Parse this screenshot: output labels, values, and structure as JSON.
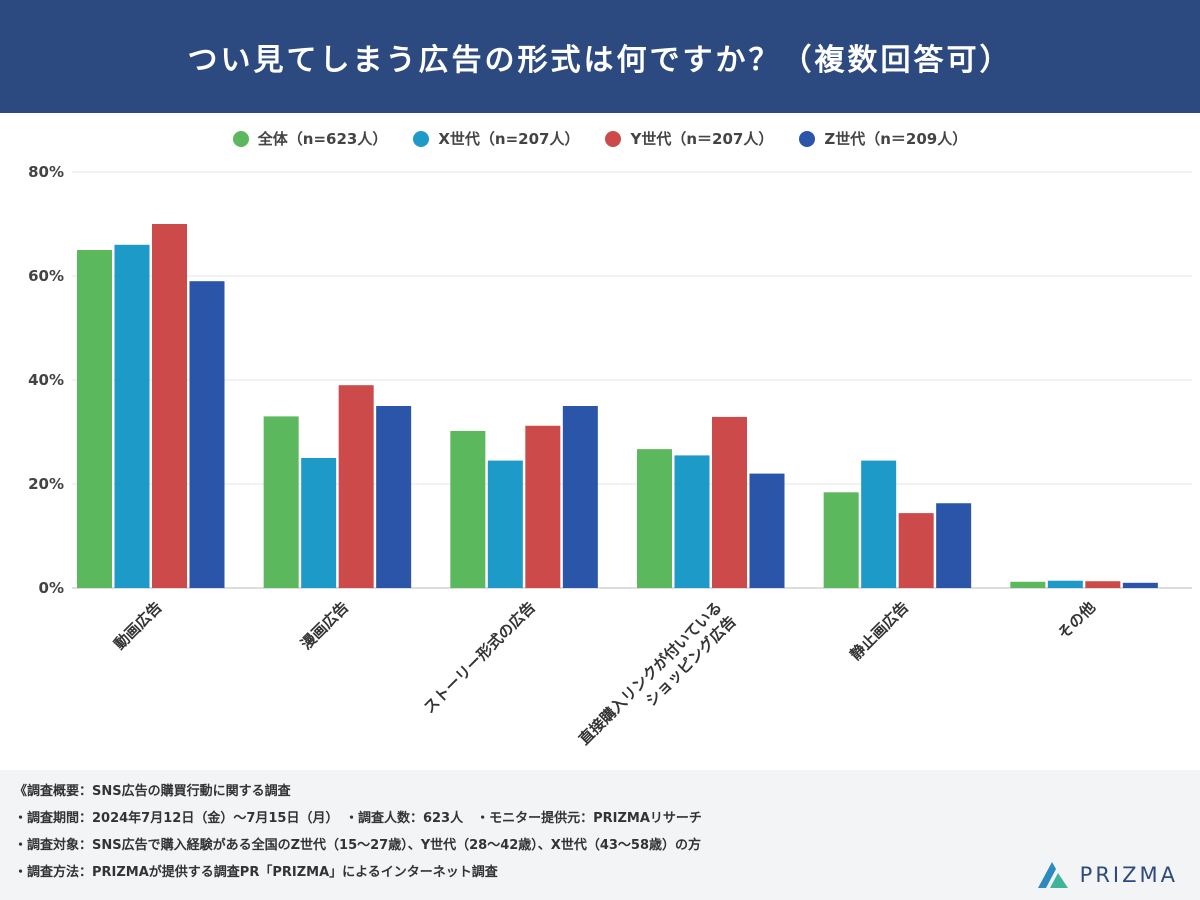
{
  "header": {
    "title": "つい見てしまう広告の形式は何ですか？（複数回答可）"
  },
  "chart_data": {
    "type": "bar",
    "categories": [
      "動画広告",
      "漫画広告",
      "ストーリー形式の広告",
      "直接購入リンクが付いている\nショッピング広告",
      "静止画広告",
      "その他"
    ],
    "series": [
      {
        "name": "全体（n=623人）",
        "color": "#5cb85c",
        "values": [
          65,
          33,
          30.2,
          26.7,
          18.4,
          1.2
        ]
      },
      {
        "name": "X世代（n=207人）",
        "color": "#1e9ac9",
        "values": [
          66,
          25,
          24.5,
          25.5,
          24.5,
          1.4
        ]
      },
      {
        "name": "Y世代（n＝207人）",
        "color": "#cc4a4a",
        "values": [
          70,
          39,
          31.2,
          32.9,
          14.4,
          1.3
        ]
      },
      {
        "name": "Z世代（n＝209人）",
        "color": "#2a55a8",
        "values": [
          59,
          35,
          35,
          22,
          16.3,
          1
        ]
      }
    ],
    "y_ticks": [
      "0%",
      "20%",
      "40%",
      "60%",
      "80%"
    ],
    "ylim": [
      0,
      80
    ],
    "grid": true,
    "legend": "top-center"
  },
  "footer": {
    "lines": [
      "《調査概要：SNS広告の購買行動に関する調査",
      "・調査期間：2024年7月12日（金）～7月15日（月）　・調査人数：623人　・モニター提供元：PRIZMAリサーチ",
      "・調査対象：SNS広告で購入経験がある全国のZ世代（15～27歳）、Y世代（28～42歳）、X世代（43～58歳）の方",
      "・調査方法：PRIZMAが提供する調査PR「PRIZMA」によるインターネット調査"
    ],
    "brand": "PRIZMA",
    "brand_colors": [
      "#2b8ac0",
      "#3fb49a"
    ]
  }
}
